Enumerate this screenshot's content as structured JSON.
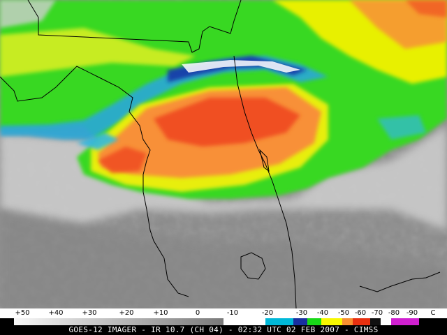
{
  "image": {
    "caption": "GOES-12 IMAGER - IR 10.7 (CH 04) - 02:32 UTC 02 FEB 2007 - CIMSS"
  },
  "legend": {
    "ticks": [
      "+50",
      "+40",
      "+30",
      "+20",
      "+10",
      "0",
      "-10",
      "-20",
      "-30",
      "-40",
      "-50",
      "-60",
      "-70",
      "-80",
      "-90",
      "C"
    ],
    "colors": {
      "warm_end": "#f8f8f8",
      "gray_mid": "#7a7a7a",
      "cyan": "#00b8d8",
      "blue": "#1830a0",
      "green": "#18d818",
      "yellow": "#f8f800",
      "orange": "#f89030",
      "red": "#e83010",
      "black": "#101010",
      "white": "#ffffff",
      "magenta": "#d020d0"
    }
  },
  "map_colors": {
    "clear_gray": "#8a8a8a",
    "low_cloud_white": "#d8d8d8",
    "green_cloud": "#40e020",
    "yellow_cloud": "#e8f000",
    "orange_cloud": "#f89038",
    "red_cloud": "#f05020",
    "cyan_edge": "#30b8e0",
    "blue_edge": "#1030a0",
    "coastline": "#000000"
  }
}
